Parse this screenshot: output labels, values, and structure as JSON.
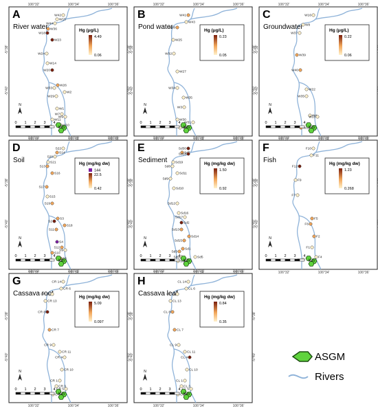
{
  "colors": {
    "river": "#8fb3d9",
    "point_low": "#fff2cc",
    "point_mid": "#f2a65a",
    "point_high": "#7a1e0c",
    "point_max": "#7b1fa2",
    "asgm": "#5fd33d"
  },
  "coords": {
    "lon": [
      "106°32'",
      "106°34'",
      "106°36'"
    ],
    "lat": [
      "-5°38'",
      "-5°40'"
    ]
  },
  "scale": {
    "ticks": [
      "0",
      "1",
      "2",
      "3",
      "4"
    ],
    "unit": "Km"
  },
  "north_symbol": "N",
  "panels": [
    {
      "letter": "A",
      "title": "River water",
      "unit": "Hg (μg/L)",
      "legend_values": [
        "4.49",
        "0.06"
      ],
      "legend_max": null,
      "points": [
        {
          "id": "W42",
          "lvl": 1
        },
        {
          "id": "W15",
          "lvl": 1
        },
        {
          "id": "W44",
          "lvl": 1
        },
        {
          "id": "W36",
          "lvl": 2
        },
        {
          "id": "W18",
          "lvl": 3
        },
        {
          "id": "W23",
          "lvl": 3
        },
        {
          "id": "W24",
          "lvl": 1
        },
        {
          "id": "W14",
          "lvl": 1
        },
        {
          "id": "W20",
          "lvl": 3
        },
        {
          "id": "W26",
          "lvl": 2
        },
        {
          "id": "W33",
          "lvl": 1
        },
        {
          "id": "W2",
          "lvl": 1
        },
        {
          "id": "W29",
          "lvl": 1
        },
        {
          "id": "W1",
          "lvl": 1
        },
        {
          "id": "W7",
          "lvl": 1
        },
        {
          "id": "W11",
          "lvl": 1
        },
        {
          "id": "W9",
          "lvl": 1
        },
        {
          "id": "W10",
          "lvl": 1
        },
        {
          "id": "W6",
          "lvl": 1
        }
      ],
      "asgm": true
    },
    {
      "letter": "B",
      "title": "Pond water",
      "unit": "Hg (μg/L)",
      "legend_values": [
        "0.23",
        "0.05"
      ],
      "legend_max": null,
      "points": [
        {
          "id": "W41",
          "lvl": 2
        },
        {
          "id": "W43",
          "lvl": 1
        },
        {
          "id": "W38",
          "lvl": 2
        },
        {
          "id": "W25",
          "lvl": 1
        },
        {
          "id": "W32",
          "lvl": 1
        },
        {
          "id": "W27",
          "lvl": 1
        },
        {
          "id": "W34",
          "lvl": 1
        },
        {
          "id": "W35",
          "lvl": 1
        },
        {
          "id": "W3",
          "lvl": 1
        },
        {
          "id": "W30",
          "lvl": 1
        },
        {
          "id": "W31",
          "lvl": 1
        },
        {
          "id": "W5",
          "lvl": 1
        }
      ],
      "asgm": true
    },
    {
      "letter": "C",
      "title": "Groundwater",
      "unit": "Hg (μg/L)",
      "legend_values": [
        "0.22",
        "0.06"
      ],
      "legend_max": null,
      "points": [
        {
          "id": "W16",
          "lvl": 1
        },
        {
          "id": "W8",
          "lvl": 1
        },
        {
          "id": "W37",
          "lvl": 1
        },
        {
          "id": "W39",
          "lvl": 2
        },
        {
          "id": "W40",
          "lvl": 2
        },
        {
          "id": "W22",
          "lvl": 1
        },
        {
          "id": "W35",
          "lvl": 1
        },
        {
          "id": "W4",
          "lvl": 1
        },
        {
          "id": "W13",
          "lvl": 1
        },
        {
          "id": "W12",
          "lvl": 2
        }
      ],
      "asgm": true
    },
    {
      "letter": "D",
      "title": "Soil",
      "unit": "Hg (mg/kg dw)",
      "legend_values": [
        "22.5",
        "0.42"
      ],
      "legend_max": "144",
      "points": [
        {
          "id": "S22",
          "lvl": 1
        },
        {
          "id": "S14",
          "lvl": 2
        },
        {
          "id": "S20",
          "lvl": 1
        },
        {
          "id": "S21",
          "lvl": 1
        },
        {
          "id": "S13",
          "lvl": 2
        },
        {
          "id": "S16",
          "lvl": 2
        },
        {
          "id": "S17",
          "lvl": 2
        },
        {
          "id": "S15",
          "lvl": 1
        },
        {
          "id": "S19",
          "lvl": 2
        },
        {
          "id": "S3",
          "lvl": 2
        },
        {
          "id": "S2",
          "lvl": 3
        },
        {
          "id": "S18",
          "lvl": 2
        },
        {
          "id": "S11",
          "lvl": 2
        },
        {
          "id": "S4",
          "lvl": 4
        },
        {
          "id": "S12",
          "lvl": 2
        },
        {
          "id": "S10",
          "lvl": 2
        },
        {
          "id": "S9",
          "lvl": 1
        },
        {
          "id": "S5",
          "lvl": 2
        },
        {
          "id": "S6",
          "lvl": 1
        }
      ],
      "asgm": true
    },
    {
      "letter": "E",
      "title": "Sediment",
      "unit": "Hg (mg/kg dw)",
      "legend_values": [
        "1.50",
        "0.92"
      ],
      "legend_max": null,
      "points": [
        {
          "id": "Sd30",
          "lvl": 3
        },
        {
          "id": "Sd7",
          "lvl": 2
        },
        {
          "id": "Sd18",
          "lvl": 3
        },
        {
          "id": "Sd19",
          "lvl": 1
        },
        {
          "id": "Sd8",
          "lvl": 1
        },
        {
          "id": "Sd11",
          "lvl": 1
        },
        {
          "id": "Sd9",
          "lvl": 1
        },
        {
          "id": "Sd10",
          "lvl": 1
        },
        {
          "id": "Sd12",
          "lvl": 1
        },
        {
          "id": "Sd16",
          "lvl": 1
        },
        {
          "id": "Sd17",
          "lvl": 1
        },
        {
          "id": "Sd2",
          "lvl": 3
        },
        {
          "id": "Sd13",
          "lvl": 2
        },
        {
          "id": "Sd14",
          "lvl": 2
        },
        {
          "id": "Sd15",
          "lvl": 2
        },
        {
          "id": "Sd1",
          "lvl": 2
        },
        {
          "id": "Sd3",
          "lvl": 2
        },
        {
          "id": "Sd5",
          "lvl": 1
        },
        {
          "id": "Sd6",
          "lvl": 1
        },
        {
          "id": "Sd4",
          "lvl": 1
        }
      ],
      "asgm": true
    },
    {
      "letter": "F",
      "title": "Fish",
      "unit": "Hg (mg/kg dw)",
      "legend_values": [
        "1.23",
        "0.268"
      ],
      "legend_max": null,
      "points": [
        {
          "id": "F10",
          "lvl": 1
        },
        {
          "id": "F11",
          "lvl": 1
        },
        {
          "id": "F12",
          "lvl": 3
        },
        {
          "id": "F9",
          "lvl": 1
        },
        {
          "id": "F7",
          "lvl": 1
        },
        {
          "id": "F5",
          "lvl": 2
        },
        {
          "id": "F6",
          "lvl": 2
        },
        {
          "id": "F2",
          "lvl": 2
        },
        {
          "id": "F1",
          "lvl": 1
        },
        {
          "id": "F4",
          "lvl": 1
        },
        {
          "id": "F3",
          "lvl": 1
        }
      ],
      "asgm": true
    },
    {
      "letter": "G",
      "title": "Cassava root",
      "unit": "Hg (mg/kg dw)",
      "legend_values": [
        "5.09",
        "0.097"
      ],
      "legend_max": null,
      "points": [
        {
          "id": "CR 14",
          "lvl": 1
        },
        {
          "id": "CR 6",
          "lvl": 1
        },
        {
          "id": "CR 12",
          "lvl": 1
        },
        {
          "id": "CR 13",
          "lvl": 1
        },
        {
          "id": "CR 8",
          "lvl": 3
        },
        {
          "id": "CR 7",
          "lvl": 2
        },
        {
          "id": "CR 9",
          "lvl": 1
        },
        {
          "id": "CR 11",
          "lvl": 1
        },
        {
          "id": "CR 4",
          "lvl": 1
        },
        {
          "id": "CR 10",
          "lvl": 1
        },
        {
          "id": "CR 1",
          "lvl": 1
        },
        {
          "id": "CR 3",
          "lvl": 1
        },
        {
          "id": "CR 5",
          "lvl": 1
        },
        {
          "id": "CR 2",
          "lvl": 1
        }
      ],
      "asgm": true
    },
    {
      "letter": "H",
      "title": "Cassava leaf",
      "unit": "Hg (mg/kg dw)",
      "legend_values": [
        "0.84",
        "0.35"
      ],
      "legend_max": null,
      "points": [
        {
          "id": "CL 14",
          "lvl": 1
        },
        {
          "id": "CL 6",
          "lvl": 1
        },
        {
          "id": "CL 12",
          "lvl": 1
        },
        {
          "id": "CL 13",
          "lvl": 1
        },
        {
          "id": "CL 8",
          "lvl": 2
        },
        {
          "id": "CL 7",
          "lvl": 2
        },
        {
          "id": "CL 9",
          "lvl": 1
        },
        {
          "id": "CL 11",
          "lvl": 1
        },
        {
          "id": "CL 4",
          "lvl": 3
        },
        {
          "id": "CL 10",
          "lvl": 1
        },
        {
          "id": "CL 1",
          "lvl": 1
        },
        {
          "id": "CL 3",
          "lvl": 1
        },
        {
          "id": "CL 5",
          "lvl": 1
        },
        {
          "id": "CL 2",
          "lvl": 1
        }
      ],
      "asgm": true
    }
  ],
  "legend": {
    "asgm_label": "ASGM",
    "rivers_label": "Rivers"
  }
}
